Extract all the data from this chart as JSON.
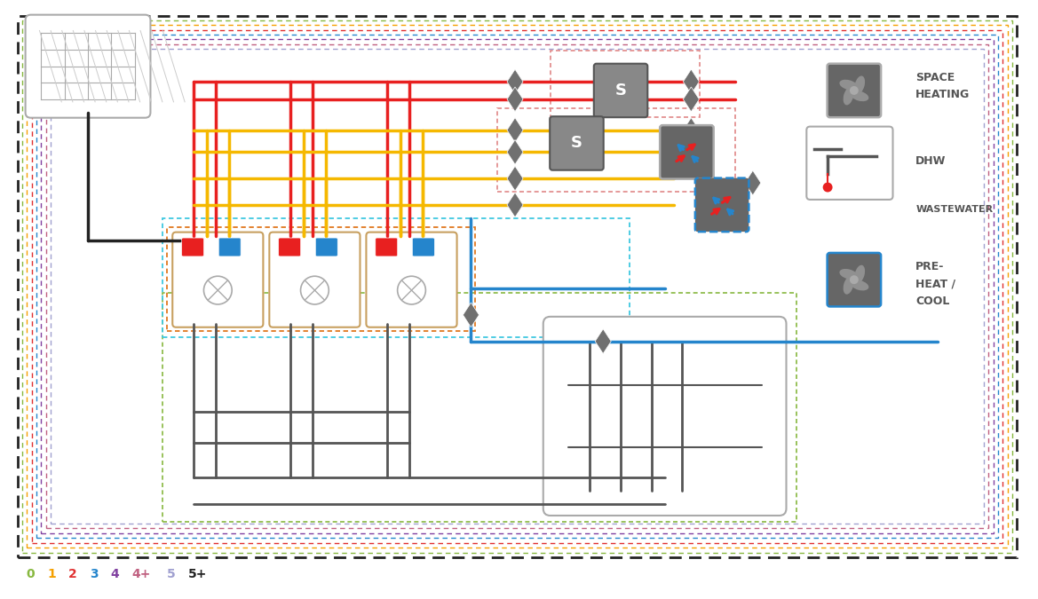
{
  "fig_w": 11.69,
  "fig_h": 6.75,
  "red": "#e82020",
  "yellow": "#f5b800",
  "blue": "#2585cc",
  "gray": "#707070",
  "dgray": "#555555",
  "lgray": "#aaaaaa",
  "orange": "#e07820",
  "cyan": "#40c8e0",
  "black": "#222222",
  "white": "#ffffff",
  "border_colors": [
    "#88b840",
    "#f5a000",
    "#e03030",
    "#2585cc",
    "#8040a0",
    "#c06080",
    "#a0a0d0"
  ],
  "legend": [
    {
      "num": "0",
      "col": "#88b840"
    },
    {
      "num": "1",
      "col": "#f5a000"
    },
    {
      "num": "2",
      "col": "#e03030"
    },
    {
      "num": "3",
      "col": "#2585cc"
    },
    {
      "num": "4",
      "col": "#8040a0"
    },
    {
      "num": "4+",
      "col": "#c06080"
    },
    {
      "num": "5",
      "col": "#a0a0d0"
    },
    {
      "num": "5+",
      "col": "#222222"
    }
  ]
}
